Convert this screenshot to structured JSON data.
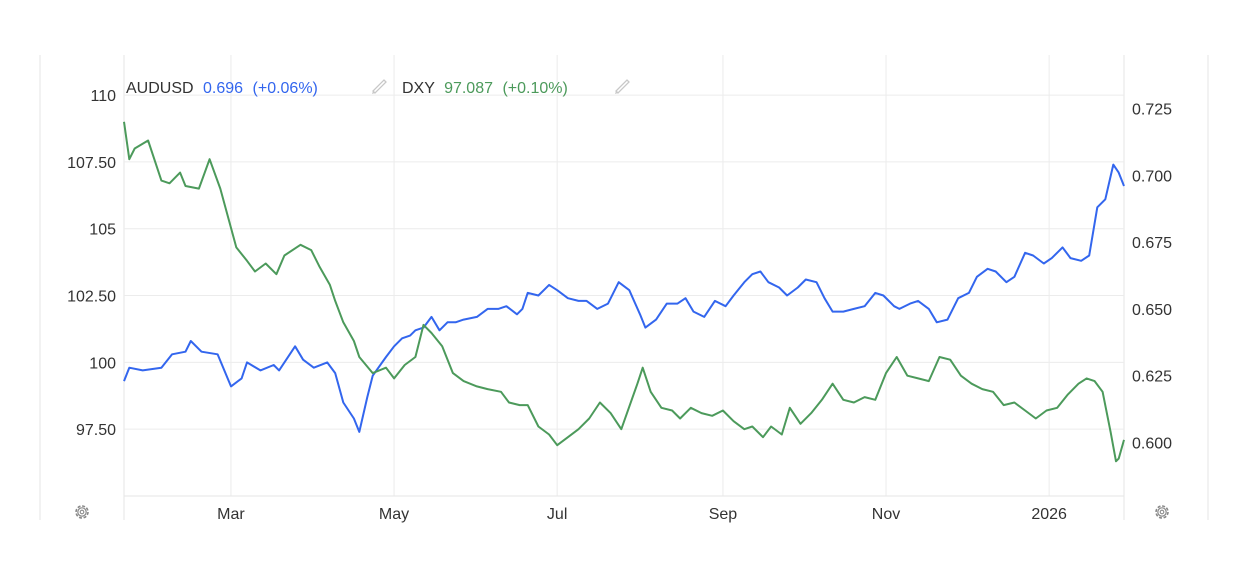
{
  "legend": {
    "series1": {
      "symbol": "AUDUSD",
      "value": "0.696",
      "change": "(+0.06%)",
      "color": "#3366ee",
      "icon": "pencil-icon"
    },
    "series2": {
      "symbol": "DXY",
      "value": "97.087",
      "change": "(+0.10%)",
      "color": "#4c9a5b",
      "icon": "pencil-icon"
    }
  },
  "settings_icons": [
    "gear-icon-left",
    "gear-icon-right"
  ],
  "chart_data": {
    "type": "line",
    "title": "",
    "x_range": [
      "2025-01-20",
      "2026-01-29"
    ],
    "x_ticks": [
      {
        "date": "2025-03-01",
        "label": "Mar"
      },
      {
        "date": "2025-05-01",
        "label": "May"
      },
      {
        "date": "2025-07-01",
        "label": "Jul"
      },
      {
        "date": "2025-09-01",
        "label": "Sep"
      },
      {
        "date": "2025-11-01",
        "label": "Nov"
      },
      {
        "date": "2026-01-01",
        "label": "2026"
      }
    ],
    "left_axis": {
      "series": "DXY",
      "range": [
        95,
        111.5
      ],
      "ticks": [
        97.5,
        100,
        102.5,
        105,
        107.5,
        110
      ],
      "tick_labels": [
        "97.50",
        "100",
        "102.50",
        "105",
        "107.50",
        "110"
      ]
    },
    "right_axis": {
      "series": "AUDUSD",
      "range": [
        0.58,
        0.745
      ],
      "ticks": [
        0.6,
        0.625,
        0.65,
        0.675,
        0.7,
        0.725
      ],
      "tick_labels": [
        "0.600",
        "0.625",
        "0.650",
        "0.675",
        "0.700",
        "0.725"
      ]
    },
    "grid": true,
    "series": [
      {
        "name": "AUDUSD",
        "axis": "right",
        "color": "#3366ee",
        "points": [
          [
            "2025-01-20",
            0.623
          ],
          [
            "2025-01-22",
            0.628
          ],
          [
            "2025-01-27",
            0.627
          ],
          [
            "2025-02-03",
            0.628
          ],
          [
            "2025-02-07",
            0.633
          ],
          [
            "2025-02-12",
            0.634
          ],
          [
            "2025-02-14",
            0.638
          ],
          [
            "2025-02-18",
            0.634
          ],
          [
            "2025-02-24",
            0.633
          ],
          [
            "2025-03-01",
            0.621
          ],
          [
            "2025-03-05",
            0.624
          ],
          [
            "2025-03-07",
            0.63
          ],
          [
            "2025-03-12",
            0.627
          ],
          [
            "2025-03-17",
            0.629
          ],
          [
            "2025-03-19",
            0.627
          ],
          [
            "2025-03-25",
            0.636
          ],
          [
            "2025-03-28",
            0.631
          ],
          [
            "2025-04-01",
            0.628
          ],
          [
            "2025-04-06",
            0.63
          ],
          [
            "2025-04-09",
            0.626
          ],
          [
            "2025-04-12",
            0.615
          ],
          [
            "2025-04-16",
            0.609
          ],
          [
            "2025-04-18",
            0.604
          ],
          [
            "2025-04-21",
            0.617
          ],
          [
            "2025-04-23",
            0.625
          ],
          [
            "2025-04-28",
            0.632
          ],
          [
            "2025-05-01",
            0.636
          ],
          [
            "2025-05-04",
            0.639
          ],
          [
            "2025-05-07",
            0.64
          ],
          [
            "2025-05-09",
            0.642
          ],
          [
            "2025-05-12",
            0.643
          ],
          [
            "2025-05-15",
            0.647
          ],
          [
            "2025-05-18",
            0.642
          ],
          [
            "2025-05-21",
            0.645
          ],
          [
            "2025-05-24",
            0.645
          ],
          [
            "2025-05-27",
            0.646
          ],
          [
            "2025-06-01",
            0.647
          ],
          [
            "2025-06-05",
            0.65
          ],
          [
            "2025-06-09",
            0.65
          ],
          [
            "2025-06-12",
            0.651
          ],
          [
            "2025-06-16",
            0.648
          ],
          [
            "2025-06-18",
            0.65
          ],
          [
            "2025-06-20",
            0.656
          ],
          [
            "2025-06-24",
            0.655
          ],
          [
            "2025-06-28",
            0.659
          ],
          [
            "2025-07-01",
            0.657
          ],
          [
            "2025-07-05",
            0.654
          ],
          [
            "2025-07-09",
            0.653
          ],
          [
            "2025-07-12",
            0.653
          ],
          [
            "2025-07-16",
            0.65
          ],
          [
            "2025-07-20",
            0.652
          ],
          [
            "2025-07-24",
            0.66
          ],
          [
            "2025-07-28",
            0.657
          ],
          [
            "2025-08-01",
            0.648
          ],
          [
            "2025-08-03",
            0.643
          ],
          [
            "2025-08-07",
            0.646
          ],
          [
            "2025-08-11",
            0.652
          ],
          [
            "2025-08-15",
            0.652
          ],
          [
            "2025-08-18",
            0.654
          ],
          [
            "2025-08-21",
            0.649
          ],
          [
            "2025-08-25",
            0.647
          ],
          [
            "2025-08-29",
            0.653
          ],
          [
            "2025-09-02",
            0.651
          ],
          [
            "2025-09-05",
            0.655
          ],
          [
            "2025-09-09",
            0.66
          ],
          [
            "2025-09-12",
            0.663
          ],
          [
            "2025-09-15",
            0.664
          ],
          [
            "2025-09-18",
            0.66
          ],
          [
            "2025-09-22",
            0.658
          ],
          [
            "2025-09-25",
            0.655
          ],
          [
            "2025-09-29",
            0.658
          ],
          [
            "2025-10-02",
            0.661
          ],
          [
            "2025-10-06",
            0.66
          ],
          [
            "2025-10-09",
            0.654
          ],
          [
            "2025-10-12",
            0.649
          ],
          [
            "2025-10-16",
            0.649
          ],
          [
            "2025-10-20",
            0.65
          ],
          [
            "2025-10-24",
            0.651
          ],
          [
            "2025-10-28",
            0.656
          ],
          [
            "2025-10-31",
            0.655
          ],
          [
            "2025-11-04",
            0.651
          ],
          [
            "2025-11-06",
            0.65
          ],
          [
            "2025-11-10",
            0.652
          ],
          [
            "2025-11-13",
            0.653
          ],
          [
            "2025-11-17",
            0.65
          ],
          [
            "2025-11-20",
            0.645
          ],
          [
            "2025-11-24",
            0.646
          ],
          [
            "2025-11-28",
            0.654
          ],
          [
            "2025-12-02",
            0.656
          ],
          [
            "2025-12-05",
            0.662
          ],
          [
            "2025-12-09",
            0.665
          ],
          [
            "2025-12-12",
            0.664
          ],
          [
            "2025-12-16",
            0.66
          ],
          [
            "2025-12-19",
            0.662
          ],
          [
            "2025-12-23",
            0.671
          ],
          [
            "2025-12-26",
            0.67
          ],
          [
            "2025-12-30",
            0.667
          ],
          [
            "2026-01-02",
            0.669
          ],
          [
            "2026-01-06",
            0.673
          ],
          [
            "2026-01-09",
            0.669
          ],
          [
            "2026-01-13",
            0.668
          ],
          [
            "2026-01-16",
            0.67
          ],
          [
            "2026-01-19",
            0.688
          ],
          [
            "2026-01-22",
            0.691
          ],
          [
            "2026-01-25",
            0.704
          ],
          [
            "2026-01-27",
            0.701
          ],
          [
            "2026-01-29",
            0.696
          ]
        ]
      },
      {
        "name": "DXY",
        "axis": "left",
        "color": "#4c9a5b",
        "points": [
          [
            "2025-01-20",
            109.0
          ],
          [
            "2025-01-22",
            107.6
          ],
          [
            "2025-01-24",
            108.0
          ],
          [
            "2025-01-29",
            108.3
          ],
          [
            "2025-02-03",
            106.8
          ],
          [
            "2025-02-06",
            106.7
          ],
          [
            "2025-02-10",
            107.1
          ],
          [
            "2025-02-12",
            106.6
          ],
          [
            "2025-02-17",
            106.5
          ],
          [
            "2025-02-21",
            107.6
          ],
          [
            "2025-02-25",
            106.5
          ],
          [
            "2025-03-03",
            104.3
          ],
          [
            "2025-03-07",
            103.8
          ],
          [
            "2025-03-10",
            103.4
          ],
          [
            "2025-03-14",
            103.7
          ],
          [
            "2025-03-18",
            103.3
          ],
          [
            "2025-03-21",
            104.0
          ],
          [
            "2025-03-27",
            104.4
          ],
          [
            "2025-03-31",
            104.2
          ],
          [
            "2025-04-03",
            103.6
          ],
          [
            "2025-04-07",
            102.9
          ],
          [
            "2025-04-09",
            102.3
          ],
          [
            "2025-04-12",
            101.5
          ],
          [
            "2025-04-16",
            100.8
          ],
          [
            "2025-04-18",
            100.2
          ],
          [
            "2025-04-23",
            99.6
          ],
          [
            "2025-04-28",
            99.8
          ],
          [
            "2025-05-01",
            99.4
          ],
          [
            "2025-05-05",
            99.9
          ],
          [
            "2025-05-09",
            100.2
          ],
          [
            "2025-05-12",
            101.4
          ],
          [
            "2025-05-15",
            101.1
          ],
          [
            "2025-05-19",
            100.6
          ],
          [
            "2025-05-23",
            99.6
          ],
          [
            "2025-05-27",
            99.3
          ],
          [
            "2025-06-01",
            99.1
          ],
          [
            "2025-06-05",
            99.0
          ],
          [
            "2025-06-10",
            98.9
          ],
          [
            "2025-06-13",
            98.5
          ],
          [
            "2025-06-17",
            98.4
          ],
          [
            "2025-06-20",
            98.4
          ],
          [
            "2025-06-24",
            97.6
          ],
          [
            "2025-06-28",
            97.3
          ],
          [
            "2025-07-01",
            96.9
          ],
          [
            "2025-07-05",
            97.2
          ],
          [
            "2025-07-09",
            97.5
          ],
          [
            "2025-07-13",
            97.9
          ],
          [
            "2025-07-17",
            98.5
          ],
          [
            "2025-07-21",
            98.1
          ],
          [
            "2025-07-25",
            97.5
          ],
          [
            "2025-07-31",
            99.2
          ],
          [
            "2025-08-02",
            99.8
          ],
          [
            "2025-08-05",
            98.9
          ],
          [
            "2025-08-09",
            98.3
          ],
          [
            "2025-08-13",
            98.2
          ],
          [
            "2025-08-16",
            97.9
          ],
          [
            "2025-08-20",
            98.3
          ],
          [
            "2025-08-24",
            98.1
          ],
          [
            "2025-08-28",
            98.0
          ],
          [
            "2025-09-01",
            98.2
          ],
          [
            "2025-09-05",
            97.8
          ],
          [
            "2025-09-09",
            97.5
          ],
          [
            "2025-09-12",
            97.6
          ],
          [
            "2025-09-16",
            97.2
          ],
          [
            "2025-09-19",
            97.6
          ],
          [
            "2025-09-23",
            97.3
          ],
          [
            "2025-09-26",
            98.3
          ],
          [
            "2025-09-30",
            97.7
          ],
          [
            "2025-10-04",
            98.1
          ],
          [
            "2025-10-08",
            98.6
          ],
          [
            "2025-10-12",
            99.2
          ],
          [
            "2025-10-16",
            98.6
          ],
          [
            "2025-10-20",
            98.5
          ],
          [
            "2025-10-24",
            98.7
          ],
          [
            "2025-10-28",
            98.6
          ],
          [
            "2025-11-01",
            99.6
          ],
          [
            "2025-11-05",
            100.2
          ],
          [
            "2025-11-09",
            99.5
          ],
          [
            "2025-11-13",
            99.4
          ],
          [
            "2025-11-17",
            99.3
          ],
          [
            "2025-11-21",
            100.2
          ],
          [
            "2025-11-25",
            100.1
          ],
          [
            "2025-11-29",
            99.5
          ],
          [
            "2025-12-03",
            99.2
          ],
          [
            "2025-12-07",
            99.0
          ],
          [
            "2025-12-11",
            98.9
          ],
          [
            "2025-12-15",
            98.4
          ],
          [
            "2025-12-19",
            98.5
          ],
          [
            "2025-12-23",
            98.2
          ],
          [
            "2025-12-27",
            97.9
          ],
          [
            "2025-12-31",
            98.2
          ],
          [
            "2026-01-04",
            98.3
          ],
          [
            "2026-01-08",
            98.8
          ],
          [
            "2026-01-12",
            99.2
          ],
          [
            "2026-01-15",
            99.4
          ],
          [
            "2026-01-18",
            99.3
          ],
          [
            "2026-01-21",
            98.9
          ],
          [
            "2026-01-24",
            97.4
          ],
          [
            "2026-01-26",
            96.3
          ],
          [
            "2026-01-27",
            96.4
          ],
          [
            "2026-01-29",
            97.1
          ]
        ]
      }
    ]
  }
}
